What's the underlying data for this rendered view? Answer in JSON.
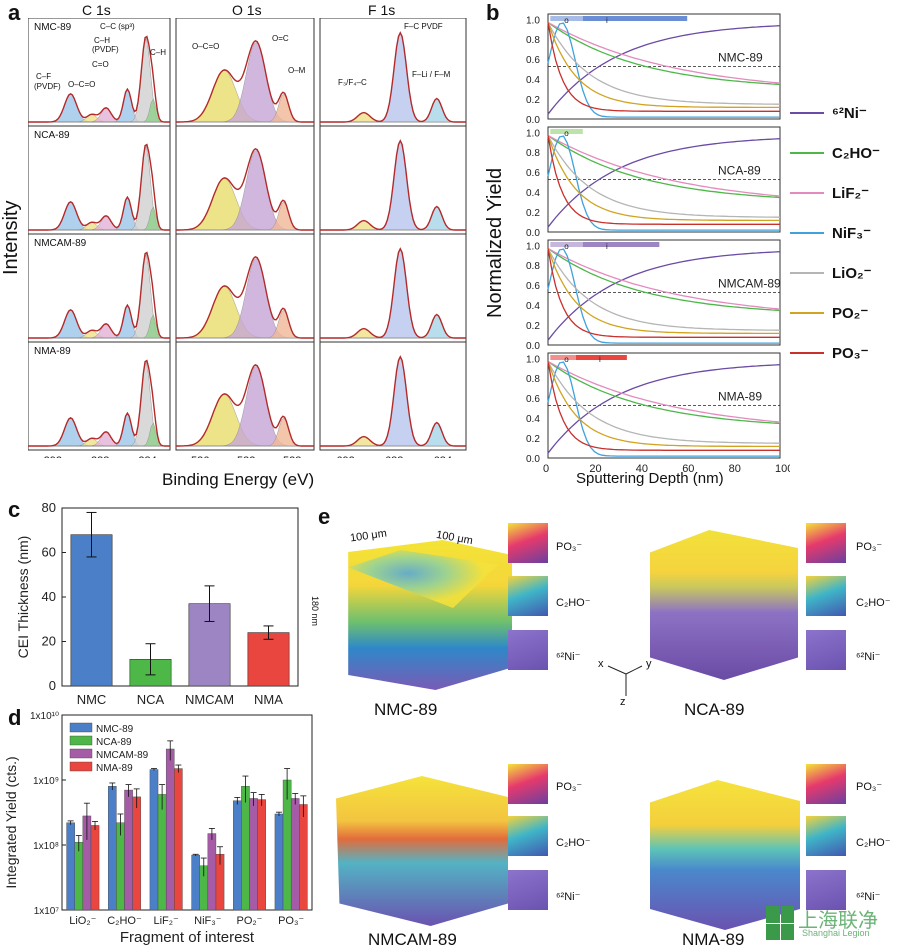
{
  "panels": {
    "a": {
      "label": "a",
      "ylabel": "Intensity",
      "xlabel": "Binding Energy (eV)",
      "columns": [
        {
          "title": "C 1s",
          "ticks": [
            "292",
            "288",
            "284"
          ]
        },
        {
          "title": "O 1s",
          "ticks": [
            "536",
            "532",
            "528"
          ]
        },
        {
          "title": "F 1s",
          "ticks": [
            "692",
            "688",
            "684"
          ]
        }
      ],
      "rows": [
        "NMC-89",
        "NCA-89",
        "NMCAM-89",
        "NMA-89"
      ],
      "peak_labels": {
        "c_f": "C–F",
        "c_f2": "(PVDF)",
        "o_c_o": "O–C=O",
        "c_o": "C=O",
        "c_h": "C–H",
        "c_h2": "(PVDF)",
        "c_c": "C–C (sp³)",
        "c_h3": "C–H",
        "o_c_o2": "O–C=O",
        "o_c": "O=C",
        "o_m": "O–M",
        "f3": "F₃/F₄–C",
        "fc": "F–C PVDF",
        "fli": "F–Li / F–M"
      }
    },
    "b": {
      "label": "b",
      "ylabel": "Normalized Yield",
      "xlabel": "Sputtering Depth (nm)",
      "xticks": [
        "0",
        "20",
        "40",
        "60",
        "80",
        "100"
      ],
      "yticks": [
        "0.0",
        "0.2",
        "0.4",
        "0.6",
        "0.8",
        "1.0"
      ],
      "rows": [
        "NMC-89",
        "NCA-89",
        "NMCAM-89",
        "NMA-89"
      ],
      "bar_o": "o",
      "bar_i": "i"
    },
    "c": {
      "label": "c"
    },
    "d": {
      "label": "d"
    },
    "e": {
      "label": "e",
      "cubes": [
        "NMC-89",
        "NCA-89",
        "NMCAM-89",
        "NMA-89"
      ],
      "dim1": "100 μm",
      "dim2": "100 μm",
      "dim3": "180 nm",
      "mini_labels": [
        "PO₃⁻",
        "C₂HO⁻",
        "⁶²Ni⁻"
      ],
      "axes": {
        "x": "x",
        "y": "y",
        "z": "z"
      }
    }
  },
  "legend_b": [
    {
      "name": "⁶²Ni⁻",
      "color": "#6a4ba5"
    },
    {
      "name": "C₂HO⁻",
      "color": "#4db848"
    },
    {
      "name": "LiF₂⁻",
      "color": "#e38bbf"
    },
    {
      "name": "NiF₃⁻",
      "color": "#3fa2dd"
    },
    {
      "name": "LiO₂⁻",
      "color": "#b5b5b5"
    },
    {
      "name": "PO₂⁻",
      "color": "#d1a321"
    },
    {
      "name": "PO₃⁻",
      "color": "#c8302c"
    }
  ],
  "watermark": {
    "text": "上海联净",
    "sub": "Shanghai Legion",
    "logo": "LEPT"
  },
  "chart_data": [
    {
      "type": "bar",
      "panel": "c",
      "categories": [
        "NMC",
        "NCA",
        "NMCAM",
        "NMA"
      ],
      "values": [
        68,
        12,
        37,
        24
      ],
      "errors": [
        10,
        7,
        8,
        3
      ],
      "colors": [
        "#4b7fc7",
        "#4db848",
        "#9d85c4",
        "#e8463f"
      ],
      "ylabel": "CEI Thickness (nm)",
      "ylim": [
        0,
        80
      ],
      "yticks": [
        0,
        20,
        40,
        60,
        80
      ]
    },
    {
      "type": "bar",
      "panel": "d",
      "scale": "log",
      "categories": [
        "LiO₂⁻",
        "C₂HO⁻",
        "LiF₂⁻",
        "NiF₃⁻",
        "PO₂⁻",
        "PO₃⁻"
      ],
      "series": [
        {
          "name": "NMC-89",
          "color": "#4b7fc7",
          "values": [
            220000000.0,
            800000000.0,
            1450000000.0,
            70000000.0,
            480000000.0,
            300000000.0
          ],
          "errors": [
            15000000.0,
            100000000.0,
            50000000.0,
            2000000.0,
            60000000.0,
            20000000.0
          ]
        },
        {
          "name": "NCA-89",
          "color": "#4db848",
          "values": [
            110000000.0,
            220000000.0,
            600000000.0,
            48000000.0,
            800000000.0,
            1000000000.0
          ],
          "errors": [
            30000000.0,
            80000000.0,
            250000000.0,
            15000000.0,
            350000000.0,
            500000000.0
          ]
        },
        {
          "name": "NMCAM-89",
          "color": "#a65ba6",
          "values": [
            280000000.0,
            700000000.0,
            3000000000.0,
            150000000.0,
            520000000.0,
            520000000.0
          ],
          "errors": [
            160000000.0,
            150000000.0,
            1000000000.0,
            30000000.0,
            120000000.0,
            100000000.0
          ]
        },
        {
          "name": "NMA-89",
          "color": "#e8463f",
          "values": [
            200000000.0,
            550000000.0,
            1500000000.0,
            72000000.0,
            500000000.0,
            420000000.0
          ],
          "errors": [
            30000000.0,
            180000000.0,
            200000000.0,
            22000000.0,
            100000000.0,
            150000000.0
          ]
        }
      ],
      "xlabel": "Fragment of interest",
      "ylabel": "Integrated Yield (cts.)",
      "ylim": [
        10000000.0,
        10000000000.0
      ],
      "yticks": [
        "1x10⁷",
        "1x10⁸",
        "1x10⁹",
        "1x10¹⁰"
      ]
    }
  ]
}
